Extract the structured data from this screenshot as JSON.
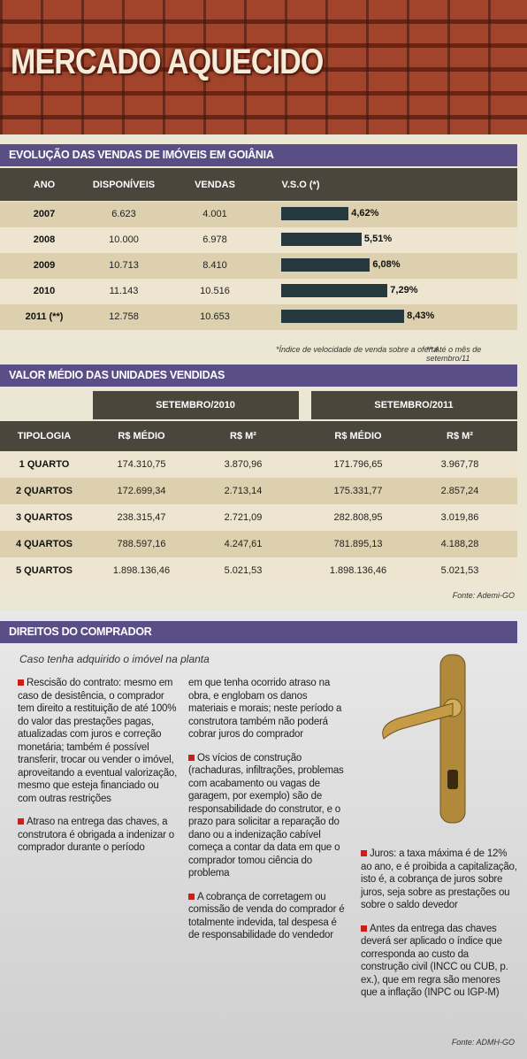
{
  "title": "MERCADO AQUECIDO",
  "sales": {
    "title": "EVOLUÇÃO DAS VENDAS DE IMÓVEIS EM GOIÂNIA",
    "headers": [
      "ANO",
      "DISPONÍVEIS",
      "VENDAS",
      "V.S.O (*)"
    ],
    "rows": [
      {
        "year": "2007",
        "available": "6.623",
        "sold": "4.001",
        "vso": 4.62,
        "vso_label": "4,62%"
      },
      {
        "year": "2008",
        "available": "10.000",
        "sold": "6.978",
        "vso": 5.51,
        "vso_label": "5,51%"
      },
      {
        "year": "2009",
        "available": "10.713",
        "sold": "8.410",
        "vso": 6.08,
        "vso_label": "6,08%"
      },
      {
        "year": "2010",
        "available": "11.143",
        "sold": "10.516",
        "vso": 7.29,
        "vso_label": "7,29%"
      },
      {
        "year": "2011 (**)",
        "available": "12.758",
        "sold": "10.653",
        "vso": 8.43,
        "vso_label": "8,43%"
      }
    ],
    "notes": [
      "*Índice de velocidade de venda sobre a oferta",
      "** Até o mês de setembro/11"
    ]
  },
  "prices": {
    "title": "VALOR MÉDIO DAS UNIDADES VENDIDAS",
    "periods": [
      "SETEMBRO/2010",
      "SETEMBRO/2011"
    ],
    "headers": [
      "TIPOLOGIA",
      "R$ MÉDIO",
      "R$ M²",
      "R$ MÉDIO",
      "R$ M²"
    ],
    "rows": [
      [
        "1 QUARTO",
        "174.310,75",
        "3.870,96",
        "171.796,65",
        "3.967,78"
      ],
      [
        "2 QUARTOS",
        "172.699,34",
        "2.713,14",
        "175.331,77",
        "2.857,24"
      ],
      [
        "3 QUARTOS",
        "238.315,47",
        "2.721,09",
        "282.808,95",
        "3.019,86"
      ],
      [
        "4 QUARTOS",
        "788.597,16",
        "4.247,61",
        "781.895,13",
        "4.188,28"
      ],
      [
        "5 QUARTOS",
        "1.898.136,46",
        "5.021,53",
        "1.898.136,46",
        "5.021,53"
      ]
    ],
    "source": "Fonte: Ademi-GO"
  },
  "rights": {
    "title": "DIREITOS DO COMPRADOR",
    "subtitle": "Caso tenha adquirido o imóvel na planta",
    "columns": [
      [
        "Rescisão do contrato: mesmo em caso de desistência, o comprador tem direito a restituição de até 100% do valor das prestações pagas, atualizadas com juros e correção monetária; também é possível transferir, trocar ou vender o imóvel, aproveitando a eventual valorização, mesmo que esteja financiado ou com outras restrições",
        "Atraso na entrega das chaves, a construtora é obrigada a indenizar o comprador durante o período"
      ],
      [
        "em que tenha ocorrido atraso na obra, e englobam os danos materiais e morais; neste período a construtora também não poderá cobrar juros do comprador",
        "Os vícios de construção (rachaduras, infiltrações, problemas com acabamento ou vagas de garagem, por exemplo) são de responsabilidade do construtor, e o prazo para solicitar a reparação do dano ou a indenização cabível começa a contar da data em que o comprador tomou ciência do problema",
        "A cobrança de corretagem ou comissão de venda do comprador é totalmente indevida, tal despesa é de responsabilidade do vendedor"
      ],
      [
        "Juros: a taxa máxima é de 12% ao ano, e é proibida a capitalização, isto é, a cobrança de juros sobre juros, seja sobre as prestações ou sobre o saldo devedor",
        "Antes da entrega das chaves deverá ser aplicado o índice que corresponda ao custo da construção civil (INCC ou CUB, p. ex.), que em regra são menores que a inflação (INPC ou IGP-M)"
      ]
    ],
    "source": "Fonte: ADMH-GO"
  }
}
